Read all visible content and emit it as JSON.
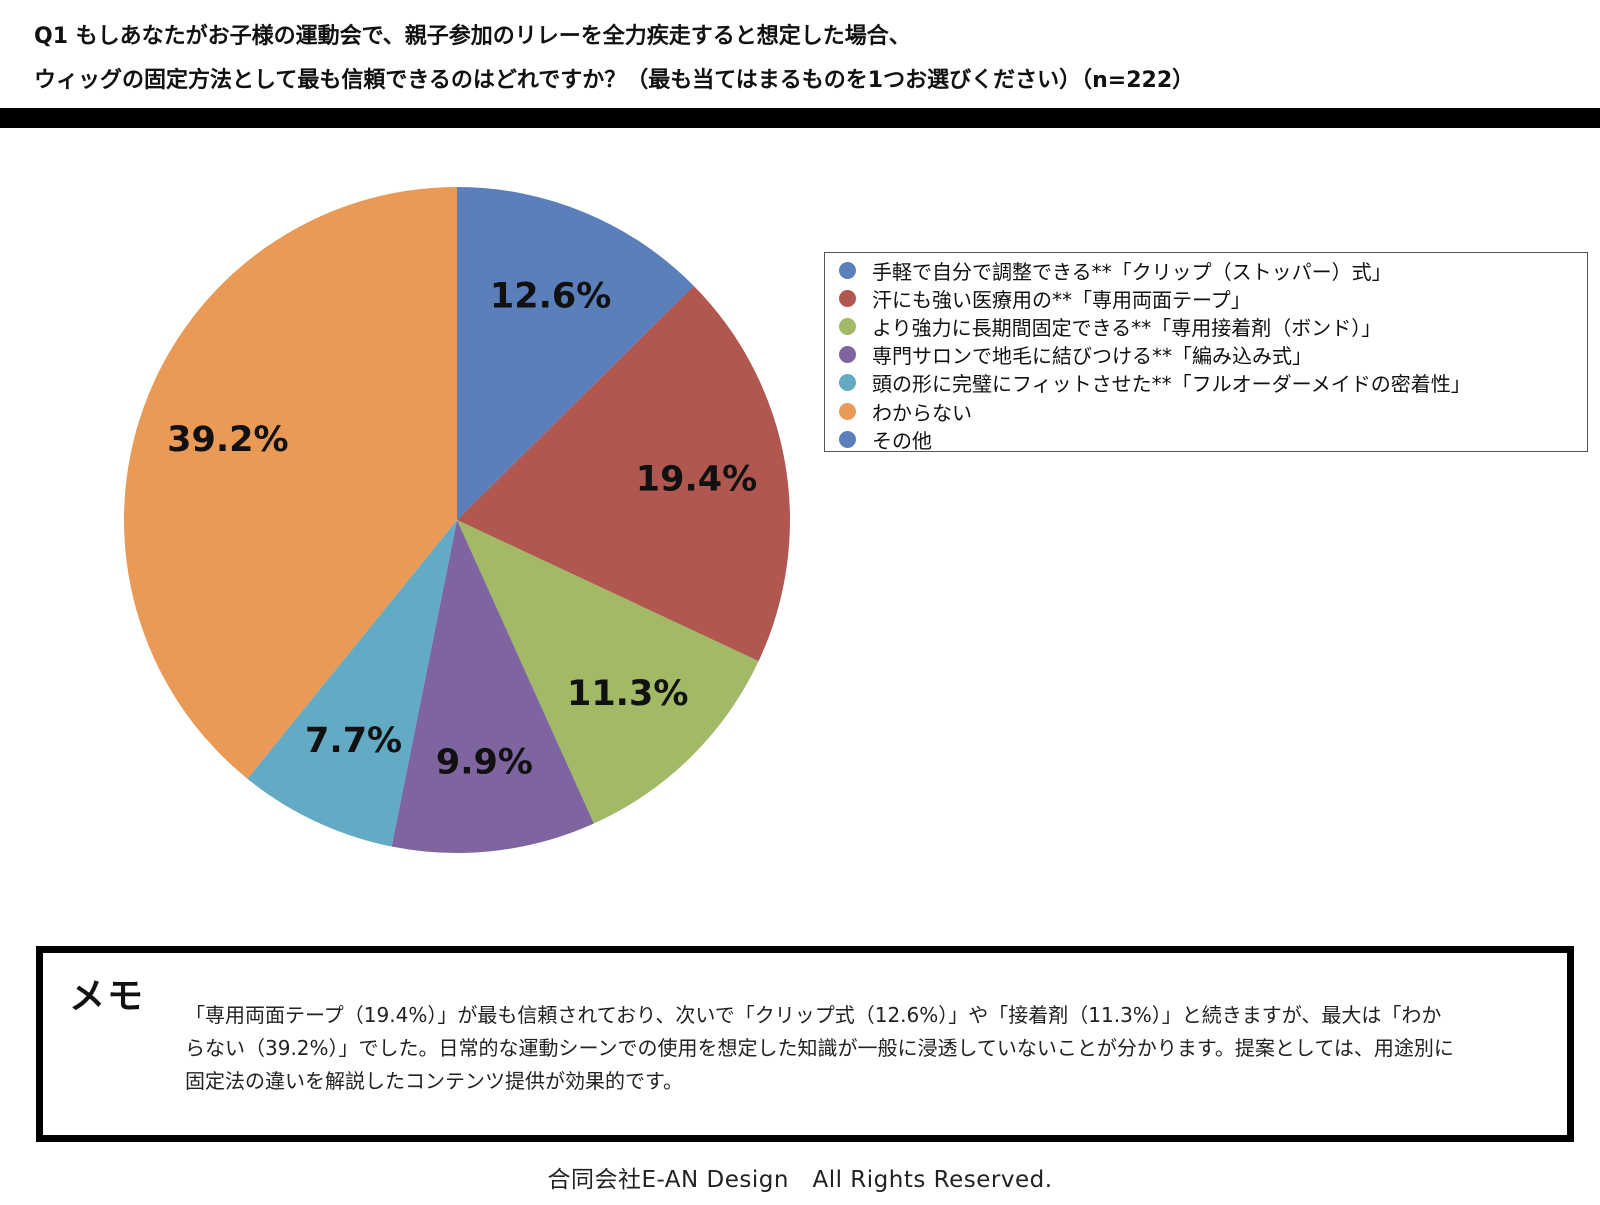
{
  "header": {
    "title_line_1": "Q1 もしあなたがお子様の運動会で、親子参加のリレーを全力疾走すると想定した場合、",
    "title_line_2": "ウィッグの固定方法として最も信頼できるのはどれですか？（最も当てはまるものを1つお選びください）（n=222）"
  },
  "chart_data": {
    "type": "pie",
    "title": "",
    "legend_position": "right",
    "slices": [
      {
        "label": "手軽で自分で調整できる**「クリップ（ストッパー）式」",
        "value": 12.6,
        "value_label": "12.6%",
        "color": "#5b7fba"
      },
      {
        "label": "汗にも強い医療用の**「専用両面テープ」",
        "value": 19.4,
        "value_label": "19.4%",
        "color": "#b05750"
      },
      {
        "label": "より強力に長期間固定できる**「専用接着剤（ボンド）」",
        "value": 11.3,
        "value_label": "11.3%",
        "color": "#a2b966"
      },
      {
        "label": "専門サロンで地毛に結びつける**「編み込み式」",
        "value": 9.9,
        "value_label": "9.9%",
        "color": "#7f659f"
      },
      {
        "label": "頭の形に完璧にフィットさせた**「フルオーダーメイドの密着性」",
        "value": 7.7,
        "value_label": "7.7%",
        "color": "#63aac4"
      },
      {
        "label": "わからない",
        "value": 39.2,
        "value_label": "39.2%",
        "color": "#e99a56"
      },
      {
        "label": "その他",
        "value": 0,
        "value_label": "",
        "color": "#5b7fba"
      }
    ]
  },
  "memo": {
    "title": "メモ",
    "text": "「専用両面テープ（19.4%）」が最も信頼されており、次いで「クリップ式（12.6%）」や「接着剤（11.3%）」と続きますが、最大は「わからない（39.2%）」でした。日常的な運動シーンでの使用を想定した知識が一般に浸透していないことが分かります。提案としては、用途別に固定法の違いを解説したコンテンツ提供が効果的です。"
  },
  "footer": {
    "text": "合同会社E-AN Design　All Rights Reserved."
  }
}
